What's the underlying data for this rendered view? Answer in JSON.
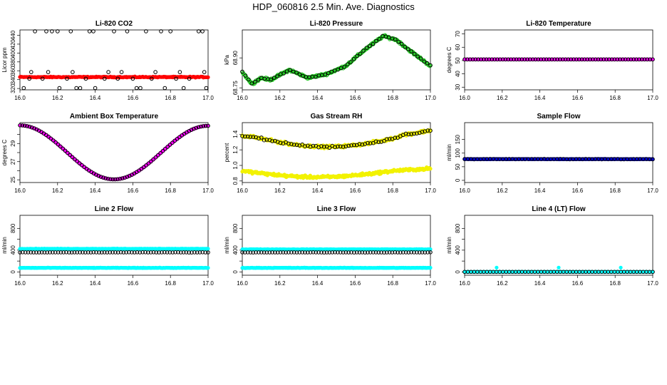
{
  "figure": {
    "title": "HDP_060816  2.5 Min. Ave. Diagnostics"
  },
  "chart_data": [
    {
      "type": "scatter",
      "title": "Li-820 CO2",
      "ylabel": "Licor ppm",
      "xlim": [
        16.0,
        17.0
      ],
      "ylim": [
        317,
        452
      ],
      "xticks": [
        "16.0",
        "16.2",
        "16.4",
        "16.6",
        "16.8",
        "17.0"
      ],
      "yticks": [
        {
          "v": 320,
          "label": "320"
        },
        {
          "v": 340,
          "label": "340"
        },
        {
          "v": 360,
          "label": "360"
        },
        {
          "v": 380,
          "label": "380"
        },
        {
          "v": 400,
          "label": "400"
        },
        {
          "v": 420,
          "label": "420"
        },
        {
          "v": 440,
          "label": "440"
        }
      ],
      "series": [
        {
          "color": "#ff0000",
          "filled": true,
          "curve": "flat",
          "base": 345.8,
          "noise": 1.6,
          "n": 240
        },
        {
          "color": "#000000",
          "filled": false,
          "points": [
            [
              16.02,
              321
            ],
            [
              16.05,
              342
            ],
            [
              16.06,
              357
            ],
            [
              16.08,
              449
            ],
            [
              16.12,
              342
            ],
            [
              16.14,
              449
            ],
            [
              16.15,
              357
            ],
            [
              16.17,
              449
            ],
            [
              16.2,
              449
            ],
            [
              16.21,
              321
            ],
            [
              16.25,
              342
            ],
            [
              16.27,
              449
            ],
            [
              16.28,
              357
            ],
            [
              16.3,
              321
            ],
            [
              16.32,
              321
            ],
            [
              16.35,
              342
            ],
            [
              16.37,
              449
            ],
            [
              16.39,
              449
            ],
            [
              16.4,
              321
            ],
            [
              16.45,
              342
            ],
            [
              16.47,
              357
            ],
            [
              16.5,
              449
            ],
            [
              16.52,
              342
            ],
            [
              16.54,
              357
            ],
            [
              16.57,
              449
            ],
            [
              16.6,
              342
            ],
            [
              16.62,
              321
            ],
            [
              16.64,
              321
            ],
            [
              16.67,
              449
            ],
            [
              16.7,
              342
            ],
            [
              16.72,
              357
            ],
            [
              16.75,
              449
            ],
            [
              16.77,
              321
            ],
            [
              16.8,
              449
            ],
            [
              16.83,
              342
            ],
            [
              16.85,
              357
            ],
            [
              16.87,
              321
            ],
            [
              16.9,
              342
            ],
            [
              16.95,
              449
            ],
            [
              16.97,
              449
            ],
            [
              16.98,
              357
            ],
            [
              16.99,
              321
            ]
          ]
        }
      ]
    },
    {
      "type": "scatter",
      "title": "Li-820 Pressure",
      "ylabel": "kPa",
      "xlim": [
        16.0,
        17.0
      ],
      "ylim": [
        68.74,
        69.04
      ],
      "xticks": [
        "16.0",
        "16.2",
        "16.4",
        "16.6",
        "16.8",
        "17.0"
      ],
      "yticks": [
        {
          "v": 68.75,
          "label": "68.75"
        },
        {
          "v": 68.9,
          "label": "68.90"
        }
      ],
      "series": [
        {
          "color": "#22c922",
          "filled": false,
          "curve": "pressure",
          "noise": 0.008,
          "n": 320
        },
        {
          "color": "#000000",
          "filled": false,
          "curve": "pressure",
          "noise": 0.004,
          "n": 60
        }
      ]
    },
    {
      "type": "scatter",
      "title": "Li-820 Temperature",
      "ylabel": "degrees C",
      "xlim": [
        16.0,
        17.0
      ],
      "ylim": [
        28,
        73
      ],
      "xticks": [
        "16.0",
        "16.2",
        "16.4",
        "16.6",
        "16.8",
        "17.0"
      ],
      "yticks": [
        {
          "v": 30,
          "label": "30"
        },
        {
          "v": 40,
          "label": "40"
        },
        {
          "v": 50,
          "label": "50"
        },
        {
          "v": 60,
          "label": "60"
        },
        {
          "v": 70,
          "label": "70"
        }
      ],
      "series": [
        {
          "color": "#ff00ff",
          "filled": true,
          "curve": "flat",
          "base": 50.9,
          "noise": 0.0,
          "n": 200
        },
        {
          "color": "#000000",
          "filled": false,
          "curve": "flat",
          "base": 50.9,
          "noise": 0.0,
          "n": 70
        }
      ]
    },
    {
      "type": "scatter",
      "title": "Ambient Box Temperature",
      "ylabel": "degrees C",
      "xlim": [
        16.0,
        17.0
      ],
      "ylim": [
        24.7,
        31.3
      ],
      "xticks": [
        "16.0",
        "16.2",
        "16.4",
        "16.6",
        "16.8",
        "17.0"
      ],
      "yticks": [
        {
          "v": 25,
          "label": "25"
        },
        {
          "v": 26,
          "label": ""
        },
        {
          "v": 27,
          "label": "27"
        },
        {
          "v": 28,
          "label": ""
        },
        {
          "v": 29,
          "label": "29"
        },
        {
          "v": 30,
          "label": ""
        }
      ],
      "series": [
        {
          "color": "#ff00ff",
          "filled": true,
          "curve": "ambient",
          "noise": 0.0,
          "n": 200
        },
        {
          "color": "#000000",
          "filled": false,
          "curve": "ambient",
          "noise": 0.0,
          "n": 80
        }
      ]
    },
    {
      "type": "scatter",
      "title": "Gas Stream RH",
      "ylabel": "percent",
      "xlim": [
        16.0,
        17.0
      ],
      "ylim": [
        0.78,
        1.55
      ],
      "xticks": [
        "16.0",
        "16.2",
        "16.4",
        "16.6",
        "16.8",
        "17.0"
      ],
      "yticks": [
        {
          "v": 0.8,
          "label": "0.8"
        },
        {
          "v": 1.0,
          "label": "1.0"
        },
        {
          "v": 1.2,
          "label": "1.2"
        },
        {
          "v": 1.4,
          "label": "1.4"
        }
      ],
      "series": [
        {
          "color": "#f2f200",
          "filled": true,
          "curve": "rh_high",
          "noise": 0.025,
          "n": 320
        },
        {
          "color": "#f2f200",
          "filled": true,
          "curve": "rh_low",
          "noise": 0.025,
          "n": 300
        },
        {
          "color": "#000000",
          "filled": false,
          "curve": "rh_high",
          "noise": 0.02,
          "n": 70
        }
      ]
    },
    {
      "type": "scatter",
      "title": "Sample Flow",
      "ylabel": "ml/min",
      "xlim": [
        16.0,
        17.0
      ],
      "ylim": [
        -8,
        212
      ],
      "xticks": [
        "16.0",
        "16.2",
        "16.4",
        "16.6",
        "16.8",
        "17.0"
      ],
      "yticks": [
        {
          "v": 0,
          "label": "0"
        },
        {
          "v": 50,
          "label": "50"
        },
        {
          "v": 100,
          "label": "100"
        },
        {
          "v": 150,
          "label": "150"
        }
      ],
      "series": [
        {
          "color": "#0000cc",
          "filled": true,
          "curve": "flat",
          "base": 78,
          "noise": 1.0,
          "n": 260
        },
        {
          "color": "#000000",
          "filled": false,
          "curve": "flat",
          "base": 78,
          "noise": 1.0,
          "n": 60
        }
      ]
    },
    {
      "type": "scatter",
      "title": "Line 2 Flow",
      "ylabel": "ml/min",
      "xlim": [
        16.0,
        17.0
      ],
      "ylim": [
        -60,
        1040
      ],
      "xticks": [
        "16.0",
        "16.2",
        "16.4",
        "16.6",
        "16.8",
        "17.0"
      ],
      "yticks": [
        {
          "v": 0,
          "label": "0"
        },
        {
          "v": 200,
          "label": ""
        },
        {
          "v": 400,
          "label": "400"
        },
        {
          "v": 600,
          "label": ""
        },
        {
          "v": 800,
          "label": "800"
        }
      ],
      "series": [
        {
          "color": "#00ffff",
          "filled": true,
          "curve": "flat",
          "base": 425,
          "noise": 6,
          "n": 260
        },
        {
          "color": "#00ffff",
          "filled": true,
          "curve": "flat",
          "base": 75,
          "noise": 6,
          "n": 260
        },
        {
          "color": "#000000",
          "filled": false,
          "curve": "flat",
          "base": 360,
          "noise": 3,
          "n": 70
        }
      ]
    },
    {
      "type": "scatter",
      "title": "Line 3 Flow",
      "ylabel": "ml/min",
      "xlim": [
        16.0,
        17.0
      ],
      "ylim": [
        -60,
        1040
      ],
      "xticks": [
        "16.0",
        "16.2",
        "16.4",
        "16.6",
        "16.8",
        "17.0"
      ],
      "yticks": [
        {
          "v": 0,
          "label": "0"
        },
        {
          "v": 200,
          "label": ""
        },
        {
          "v": 400,
          "label": "400"
        },
        {
          "v": 600,
          "label": ""
        },
        {
          "v": 800,
          "label": "800"
        }
      ],
      "series": [
        {
          "color": "#00ffff",
          "filled": true,
          "curve": "flat",
          "base": 415,
          "noise": 6,
          "n": 260
        },
        {
          "color": "#00ffff",
          "filled": true,
          "curve": "flat",
          "base": 75,
          "noise": 6,
          "n": 260
        },
        {
          "color": "#000000",
          "filled": false,
          "curve": "flat",
          "base": 360,
          "noise": 3,
          "n": 70
        }
      ]
    },
    {
      "type": "scatter",
      "title": "Line 4 (LT) Flow",
      "ylabel": "ml/min",
      "xlim": [
        16.0,
        17.0
      ],
      "ylim": [
        -60,
        1040
      ],
      "xticks": [
        "16.0",
        "16.2",
        "16.4",
        "16.6",
        "16.8",
        "17.0"
      ],
      "yticks": [
        {
          "v": 0,
          "label": "0"
        },
        {
          "v": 200,
          "label": ""
        },
        {
          "v": 400,
          "label": "400"
        },
        {
          "v": 600,
          "label": ""
        },
        {
          "v": 800,
          "label": "800"
        }
      ],
      "series": [
        {
          "color": "#00ffff",
          "filled": true,
          "curve": "flat",
          "base": 2,
          "noise": 1,
          "n": 200
        },
        {
          "color": "#000000",
          "filled": false,
          "curve": "flat",
          "base": 2,
          "noise": 0,
          "n": 60
        },
        {
          "color": "#00ffff",
          "filled": true,
          "points": [
            [
              16.17,
              80
            ],
            [
              16.5,
              80
            ],
            [
              16.83,
              80
            ]
          ]
        }
      ]
    }
  ]
}
